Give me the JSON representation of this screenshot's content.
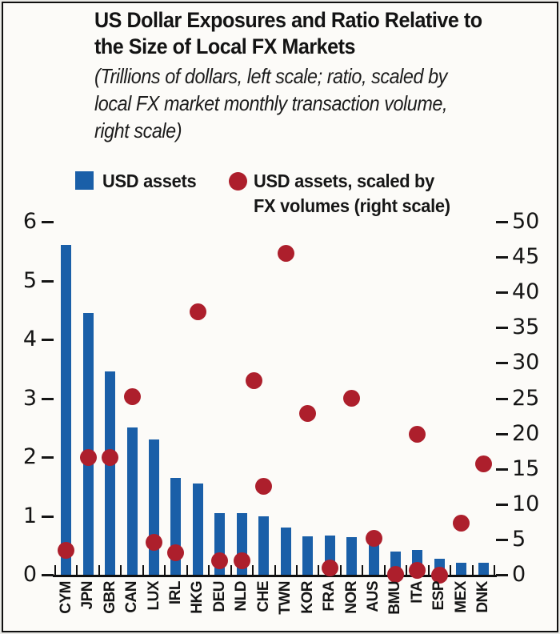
{
  "figure": {
    "title_lines": [
      "US Dollar Exposures and Ratio Relative to",
      "the Size of Local FX Markets"
    ],
    "subtitle_lines": [
      "(Trillions of dollars, left scale; ratio, scaled by",
      "local FX market monthly transaction volume,",
      "right scale)"
    ],
    "legend": [
      {
        "marker": "square",
        "lines": [
          "USD assets"
        ]
      },
      {
        "marker": "circle",
        "lines": [
          "USD assets, scaled by",
          "FX volumes (right scale)"
        ]
      }
    ]
  },
  "chart_data": {
    "type": "bar",
    "combo": "bar+scatter, dual axis",
    "title": "US Dollar Exposures and Ratio Relative to the Size of Local FX Markets",
    "subtitle": "(Trillions of dollars, left scale; ratio, scaled by local FX market monthly transaction volume, right scale)",
    "categories": [
      "CYM",
      "JPN",
      "GBR",
      "CAN",
      "LUX",
      "IRL",
      "HKG",
      "DEU",
      "NLD",
      "CHE",
      "TWN",
      "KOR",
      "FRA",
      "NOR",
      "AUS",
      "BMU",
      "ITA",
      "ESP",
      "MEX",
      "DNK"
    ],
    "series": [
      {
        "name": "USD assets",
        "type": "bar",
        "axis": "left",
        "values": [
          5.6,
          4.45,
          3.45,
          2.5,
          2.3,
          1.65,
          1.55,
          1.05,
          1.05,
          1.0,
          0.8,
          0.65,
          0.67,
          0.64,
          0.56,
          0.4,
          0.42,
          0.27,
          0.2,
          0.2
        ]
      },
      {
        "name": "USD assets, scaled by FX volumes (right scale)",
        "type": "scatter",
        "axis": "right",
        "values": [
          3.7,
          16.8,
          16.8,
          25.5,
          4.8,
          3.3,
          37.5,
          2.2,
          2.2,
          12.7,
          45.7,
          23.1,
          1.2,
          25.2,
          5.4,
          0.3,
          20.1,
          0.2,
          7.5,
          15.9
        ]
      }
    ],
    "extra_dots_observed": [
      {
        "note": "dot rendered between NLD and CHE columns",
        "index": 8.55,
        "right_value": 27.7
      },
      {
        "note": "second low dot rendered at ITA column base",
        "index": 16,
        "right_value": 0.8
      }
    ],
    "left_axis": {
      "tick_labels": [
        "0",
        "1",
        "2",
        "3",
        "4",
        "5",
        "6"
      ],
      "range": [
        0,
        6
      ],
      "unit": "Trillions of dollars"
    },
    "right_axis": {
      "tick_labels": [
        "0",
        "5",
        "10",
        "15",
        "20",
        "25",
        "30",
        "35",
        "40",
        "45",
        "50"
      ],
      "range": [
        0,
        50
      ],
      "unit": "Ratio, scaled by local FX market monthly transaction volume"
    },
    "grid": "off",
    "legend_position": "top",
    "colors": {
      "bar": "#1a5fa8",
      "dot": "#ad1f2c",
      "text": "#141414",
      "background": "#fcfbf8",
      "border": "#101010"
    }
  }
}
